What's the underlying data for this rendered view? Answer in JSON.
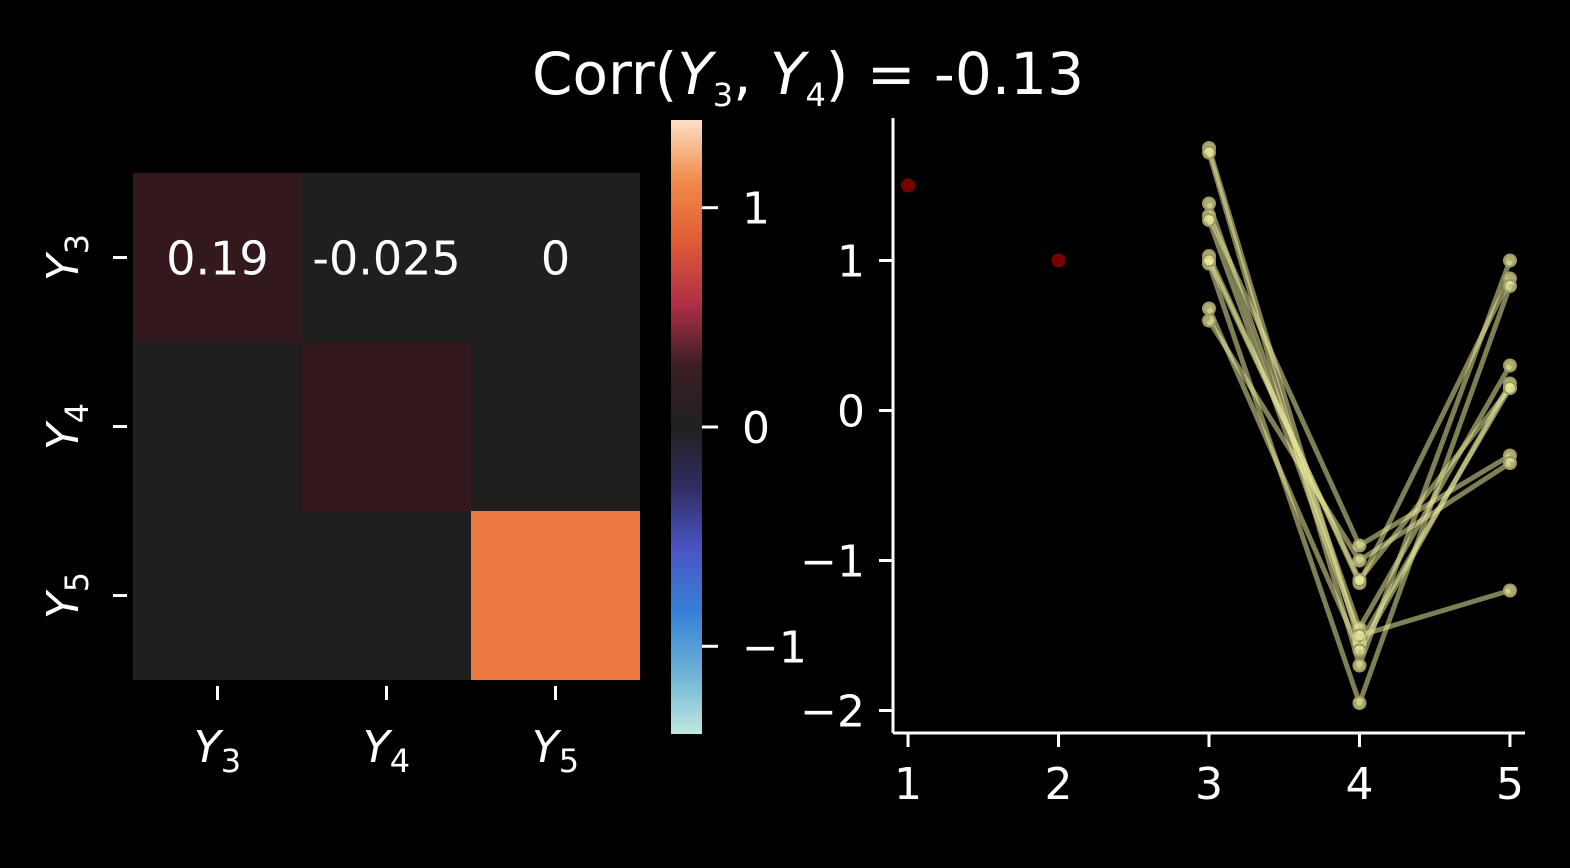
{
  "figure": {
    "title_prefix": "Corr(",
    "title_var1": "Y",
    "title_sub1": "3",
    "title_sep": ", ",
    "title_var2": "Y",
    "title_sub2": "4",
    "title_suffix": ") = -0.13",
    "background": "#000000"
  },
  "chart_data": [
    {
      "type": "heatmap",
      "rows": [
        {
          "var": "Y",
          "sub": "3"
        },
        {
          "var": "Y",
          "sub": "4"
        },
        {
          "var": "Y",
          "sub": "5"
        }
      ],
      "cols": [
        {
          "var": "Y",
          "sub": "3"
        },
        {
          "var": "Y",
          "sub": "4"
        },
        {
          "var": "Y",
          "sub": "5"
        }
      ],
      "values": [
        [
          0.19,
          -0.025,
          0
        ],
        [
          -0.025,
          0.19,
          0
        ],
        [
          0,
          0,
          1.3
        ]
      ],
      "annotations": [
        [
          "0.19",
          "-0.025",
          "0"
        ],
        [
          "",
          "",
          ""
        ],
        [
          "",
          "",
          ""
        ]
      ],
      "colorbar": {
        "vmin": -1.4,
        "vmax": 1.4,
        "ticks": [
          -1,
          0,
          1
        ],
        "tick_labels": [
          "−1",
          "0",
          "1"
        ],
        "stops": [
          "#bfe8e0",
          "#6ab2d6",
          "#3580d6",
          "#4b55c4",
          "#312d63",
          "#202020",
          "#3a1e23",
          "#b02e46",
          "#e05a36",
          "#f08a48",
          "#fde0c4"
        ]
      },
      "cell_colors": [
        [
          "#33191e",
          "#1f1f20",
          "#1f1f1f"
        ],
        [
          "#1f1f20",
          "#33191e",
          "#1f1f1f"
        ],
        [
          "#1f1f1f",
          "#1f1f1f",
          "#ec793f"
        ]
      ]
    },
    {
      "type": "line",
      "xlim": [
        0.9,
        5.1
      ],
      "ylim": [
        -2.15,
        1.95
      ],
      "xticks": [
        1,
        2,
        3,
        4,
        5
      ],
      "yticks": [
        -2,
        -1,
        0,
        1
      ],
      "ytick_labels": [
        "−2",
        "−1",
        "0",
        "1"
      ],
      "fixed_points": [
        {
          "x": 1,
          "y": 1.5
        },
        {
          "x": 2,
          "y": 1.0
        }
      ],
      "fixed_color": "#7a0000",
      "line_color": "#e8e89a",
      "series_x": [
        3,
        4,
        5
      ],
      "series": [
        {
          "values": [
            1.75,
            -1.55,
            0.15
          ]
        },
        {
          "values": [
            1.72,
            -1.7,
            1.0
          ]
        },
        {
          "values": [
            1.38,
            -1.45,
            0.3
          ]
        },
        {
          "values": [
            1.3,
            -0.9,
            -0.3
          ]
        },
        {
          "values": [
            1.27,
            -1.5,
            -1.2
          ]
        },
        {
          "values": [
            1.03,
            -1.15,
            0.88
          ]
        },
        {
          "values": [
            0.98,
            -1.95,
            0.83
          ]
        },
        {
          "values": [
            0.68,
            -1.6,
            0.18
          ]
        },
        {
          "values": [
            0.6,
            -1.0,
            -0.35
          ]
        },
        {
          "values": [
            1.0,
            -1.13,
            0.15
          ]
        }
      ]
    }
  ]
}
